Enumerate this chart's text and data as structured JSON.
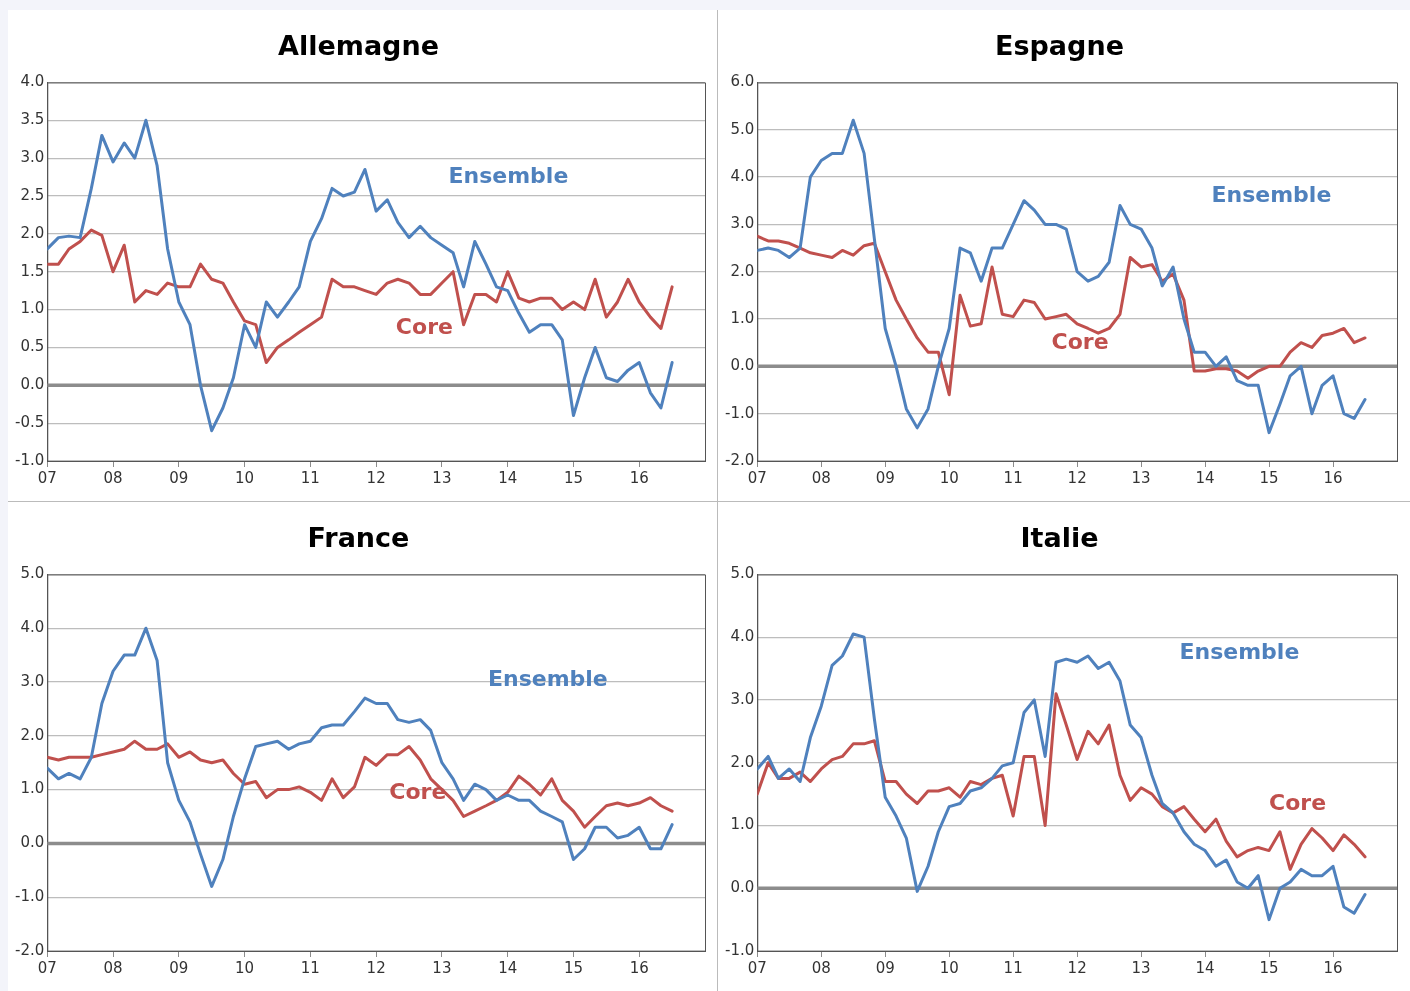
{
  "chart_data": [
    {
      "type": "line",
      "title": "Allemagne",
      "legend": false,
      "grid": "y",
      "marker": "none",
      "line_style": "solid",
      "x": [
        2007,
        2007.17,
        2007.33,
        2007.5,
        2007.67,
        2007.83,
        2008,
        2008.17,
        2008.33,
        2008.5,
        2008.67,
        2008.83,
        2009,
        2009.17,
        2009.33,
        2009.5,
        2009.67,
        2009.83,
        2010,
        2010.17,
        2010.33,
        2010.5,
        2010.67,
        2010.83,
        2011,
        2011.17,
        2011.33,
        2011.5,
        2011.67,
        2011.83,
        2012,
        2012.17,
        2012.33,
        2012.5,
        2012.67,
        2012.83,
        2013,
        2013.17,
        2013.33,
        2013.5,
        2013.67,
        2013.83,
        2014,
        2014.17,
        2014.33,
        2014.5,
        2014.67,
        2014.83,
        2015,
        2015.17,
        2015.33,
        2015.5,
        2015.67,
        2015.83,
        2016,
        2016.17,
        2016.33,
        2016.5
      ],
      "xlim": [
        2007,
        2017
      ],
      "xticks": [
        {
          "value": 2007,
          "label": "07"
        },
        {
          "value": 2008,
          "label": "08"
        },
        {
          "value": 2009,
          "label": "09"
        },
        {
          "value": 2010,
          "label": "10"
        },
        {
          "value": 2011,
          "label": "11"
        },
        {
          "value": 2012,
          "label": "12"
        },
        {
          "value": 2013,
          "label": "13"
        },
        {
          "value": 2014,
          "label": "14"
        },
        {
          "value": 2015,
          "label": "15"
        },
        {
          "value": 2016,
          "label": "16"
        }
      ],
      "ylim": [
        -1,
        4
      ],
      "yticks": [
        {
          "value": -1,
          "label": "-1.0"
        },
        {
          "value": -0.5,
          "label": "-0.5"
        },
        {
          "value": 0,
          "label": "0.0"
        },
        {
          "value": 0.5,
          "label": "0.5"
        },
        {
          "value": 1,
          "label": "1.0"
        },
        {
          "value": 1.5,
          "label": "1.5"
        },
        {
          "value": 2,
          "label": "2.0"
        },
        {
          "value": 2.5,
          "label": "2.5"
        },
        {
          "value": 3,
          "label": "3.0"
        },
        {
          "value": 3.5,
          "label": "3.5"
        },
        {
          "value": 4,
          "label": "4.0"
        }
      ],
      "series": [
        {
          "name": "Ensemble",
          "color": "#4f81bd",
          "values": [
            1.8,
            1.95,
            1.97,
            1.95,
            2.6,
            3.3,
            2.95,
            3.2,
            3.0,
            3.5,
            2.9,
            1.8,
            1.1,
            0.8,
            0.0,
            -0.6,
            -0.3,
            0.1,
            0.8,
            0.5,
            1.1,
            0.9,
            1.1,
            1.3,
            1.9,
            2.2,
            2.6,
            2.5,
            2.55,
            2.85,
            2.3,
            2.45,
            2.15,
            1.95,
            2.1,
            1.95,
            1.85,
            1.75,
            1.3,
            1.9,
            1.6,
            1.3,
            1.25,
            0.95,
            0.7,
            0.8,
            0.8,
            0.6,
            -0.4,
            0.1,
            0.5,
            0.1,
            0.05,
            0.2,
            0.3,
            -0.1,
            -0.3,
            0.3
          ]
        },
        {
          "name": "Core",
          "color": "#c0504d",
          "values": [
            1.6,
            1.6,
            1.8,
            1.9,
            2.05,
            1.98,
            1.5,
            1.85,
            1.1,
            1.25,
            1.2,
            1.35,
            1.3,
            1.3,
            1.6,
            1.4,
            1.35,
            1.1,
            0.85,
            0.8,
            0.3,
            0.5,
            0.6,
            0.7,
            0.8,
            0.9,
            1.4,
            1.3,
            1.3,
            1.25,
            1.2,
            1.35,
            1.4,
            1.35,
            1.2,
            1.2,
            1.35,
            1.5,
            0.8,
            1.2,
            1.2,
            1.1,
            1.5,
            1.15,
            1.1,
            1.15,
            1.15,
            1.0,
            1.1,
            1.0,
            1.4,
            0.9,
            1.1,
            1.4,
            1.1,
            0.9,
            0.75,
            1.3
          ]
        }
      ]
    },
    {
      "type": "line",
      "title": "Espagne",
      "legend": false,
      "grid": "y",
      "marker": "none",
      "line_style": "solid",
      "x": [
        2007,
        2007.17,
        2007.33,
        2007.5,
        2007.67,
        2007.83,
        2008,
        2008.17,
        2008.33,
        2008.5,
        2008.67,
        2008.83,
        2009,
        2009.17,
        2009.33,
        2009.5,
        2009.67,
        2009.83,
        2010,
        2010.17,
        2010.33,
        2010.5,
        2010.67,
        2010.83,
        2011,
        2011.17,
        2011.33,
        2011.5,
        2011.67,
        2011.83,
        2012,
        2012.17,
        2012.33,
        2012.5,
        2012.67,
        2012.83,
        2013,
        2013.17,
        2013.33,
        2013.5,
        2013.67,
        2013.83,
        2014,
        2014.17,
        2014.33,
        2014.5,
        2014.67,
        2014.83,
        2015,
        2015.17,
        2015.33,
        2015.5,
        2015.67,
        2015.83,
        2016,
        2016.17,
        2016.33,
        2016.5
      ],
      "xlim": [
        2007,
        2017
      ],
      "xticks": [
        {
          "value": 2007,
          "label": "07"
        },
        {
          "value": 2008,
          "label": "08"
        },
        {
          "value": 2009,
          "label": "09"
        },
        {
          "value": 2010,
          "label": "10"
        },
        {
          "value": 2011,
          "label": "11"
        },
        {
          "value": 2012,
          "label": "12"
        },
        {
          "value": 2013,
          "label": "13"
        },
        {
          "value": 2014,
          "label": "14"
        },
        {
          "value": 2015,
          "label": "15"
        },
        {
          "value": 2016,
          "label": "16"
        }
      ],
      "ylim": [
        -2,
        6
      ],
      "yticks": [
        {
          "value": -2,
          "label": "-2.0"
        },
        {
          "value": -1,
          "label": "-1.0"
        },
        {
          "value": 0,
          "label": "0.0"
        },
        {
          "value": 1,
          "label": "1.0"
        },
        {
          "value": 2,
          "label": "2.0"
        },
        {
          "value": 3,
          "label": "3.0"
        },
        {
          "value": 4,
          "label": "4.0"
        },
        {
          "value": 5,
          "label": "5.0"
        },
        {
          "value": 6,
          "label": "6.0"
        }
      ],
      "series": [
        {
          "name": "Ensemble",
          "color": "#4f81bd",
          "values": [
            2.45,
            2.5,
            2.45,
            2.3,
            2.5,
            4.0,
            4.35,
            4.5,
            4.5,
            5.2,
            4.5,
            2.7,
            0.8,
            0.0,
            -0.9,
            -1.3,
            -0.9,
            0.0,
            0.8,
            2.5,
            2.4,
            1.8,
            2.5,
            2.5,
            3.0,
            3.5,
            3.3,
            3.0,
            3.0,
            2.9,
            2.0,
            1.8,
            1.9,
            2.2,
            3.4,
            3.0,
            2.9,
            2.5,
            1.7,
            2.1,
            1.0,
            0.3,
            0.3,
            0.0,
            0.2,
            -0.3,
            -0.4,
            -0.4,
            -1.4,
            -0.8,
            -0.2,
            0.0,
            -1.0,
            -0.4,
            -0.2,
            -1.0,
            -1.1,
            -0.7
          ]
        },
        {
          "name": "Core",
          "color": "#c0504d",
          "values": [
            2.75,
            2.65,
            2.65,
            2.6,
            2.5,
            2.4,
            2.35,
            2.3,
            2.45,
            2.35,
            2.55,
            2.6,
            2.0,
            1.4,
            1.0,
            0.6,
            0.3,
            0.3,
            -0.6,
            1.5,
            0.85,
            0.9,
            2.1,
            1.1,
            1.05,
            1.4,
            1.35,
            1.0,
            1.05,
            1.1,
            0.9,
            0.8,
            0.7,
            0.8,
            1.1,
            2.3,
            2.1,
            2.15,
            1.8,
            1.95,
            1.4,
            -0.1,
            -0.1,
            -0.05,
            -0.05,
            -0.1,
            -0.25,
            -0.1,
            0.0,
            0.0,
            0.3,
            0.5,
            0.4,
            0.65,
            0.7,
            0.8,
            0.5,
            0.6
          ]
        }
      ]
    },
    {
      "type": "line",
      "title": "France",
      "legend": false,
      "grid": "y",
      "marker": "none",
      "line_style": "solid",
      "x": [
        2007,
        2007.17,
        2007.33,
        2007.5,
        2007.67,
        2007.83,
        2008,
        2008.17,
        2008.33,
        2008.5,
        2008.67,
        2008.83,
        2009,
        2009.17,
        2009.33,
        2009.5,
        2009.67,
        2009.83,
        2010,
        2010.17,
        2010.33,
        2010.5,
        2010.67,
        2010.83,
        2011,
        2011.17,
        2011.33,
        2011.5,
        2011.67,
        2011.83,
        2012,
        2012.17,
        2012.33,
        2012.5,
        2012.67,
        2012.83,
        2013,
        2013.17,
        2013.33,
        2013.5,
        2013.67,
        2013.83,
        2014,
        2014.17,
        2014.33,
        2014.5,
        2014.67,
        2014.83,
        2015,
        2015.17,
        2015.33,
        2015.5,
        2015.67,
        2015.83,
        2016,
        2016.17,
        2016.33,
        2016.5
      ],
      "xlim": [
        2007,
        2017
      ],
      "xticks": [
        {
          "value": 2007,
          "label": "07"
        },
        {
          "value": 2008,
          "label": "08"
        },
        {
          "value": 2009,
          "label": "09"
        },
        {
          "value": 2010,
          "label": "10"
        },
        {
          "value": 2011,
          "label": "11"
        },
        {
          "value": 2012,
          "label": "12"
        },
        {
          "value": 2013,
          "label": "13"
        },
        {
          "value": 2014,
          "label": "14"
        },
        {
          "value": 2015,
          "label": "15"
        },
        {
          "value": 2016,
          "label": "16"
        }
      ],
      "ylim": [
        -2,
        5
      ],
      "yticks": [
        {
          "value": -2,
          "label": "-2.0"
        },
        {
          "value": -1,
          "label": "-1.0"
        },
        {
          "value": 0,
          "label": "0.0"
        },
        {
          "value": 1,
          "label": "1.0"
        },
        {
          "value": 2,
          "label": "2.0"
        },
        {
          "value": 3,
          "label": "3.0"
        },
        {
          "value": 4,
          "label": "4.0"
        },
        {
          "value": 5,
          "label": "5.0"
        }
      ],
      "series": [
        {
          "name": "Ensemble",
          "color": "#4f81bd",
          "values": [
            1.4,
            1.2,
            1.3,
            1.2,
            1.6,
            2.6,
            3.2,
            3.5,
            3.5,
            4.0,
            3.4,
            1.5,
            0.8,
            0.4,
            -0.2,
            -0.8,
            -0.3,
            0.5,
            1.2,
            1.8,
            1.85,
            1.9,
            1.75,
            1.85,
            1.9,
            2.15,
            2.2,
            2.2,
            2.45,
            2.7,
            2.6,
            2.6,
            2.3,
            2.25,
            2.3,
            2.1,
            1.5,
            1.2,
            0.8,
            1.1,
            1.0,
            0.8,
            0.9,
            0.8,
            0.8,
            0.6,
            0.5,
            0.4,
            -0.3,
            -0.1,
            0.3,
            0.3,
            0.1,
            0.15,
            0.3,
            -0.1,
            -0.1,
            0.35
          ]
        },
        {
          "name": "Core",
          "color": "#c0504d",
          "values": [
            1.6,
            1.55,
            1.6,
            1.6,
            1.6,
            1.65,
            1.7,
            1.75,
            1.9,
            1.75,
            1.75,
            1.85,
            1.6,
            1.7,
            1.55,
            1.5,
            1.55,
            1.3,
            1.1,
            1.15,
            0.85,
            1.0,
            1.0,
            1.05,
            0.95,
            0.8,
            1.2,
            0.85,
            1.05,
            1.6,
            1.45,
            1.65,
            1.65,
            1.8,
            1.55,
            1.2,
            1.0,
            0.8,
            0.5,
            0.6,
            0.7,
            0.8,
            0.95,
            1.25,
            1.1,
            0.9,
            1.2,
            0.8,
            0.6,
            0.3,
            0.5,
            0.7,
            0.75,
            0.7,
            0.75,
            0.85,
            0.7,
            0.6
          ]
        }
      ]
    },
    {
      "type": "line",
      "title": "Italie",
      "legend": false,
      "grid": "y",
      "marker": "none",
      "line_style": "solid",
      "x": [
        2007,
        2007.17,
        2007.33,
        2007.5,
        2007.67,
        2007.83,
        2008,
        2008.17,
        2008.33,
        2008.5,
        2008.67,
        2008.83,
        2009,
        2009.17,
        2009.33,
        2009.5,
        2009.67,
        2009.83,
        2010,
        2010.17,
        2010.33,
        2010.5,
        2010.67,
        2010.83,
        2011,
        2011.17,
        2011.33,
        2011.5,
        2011.67,
        2011.83,
        2012,
        2012.17,
        2012.33,
        2012.5,
        2012.67,
        2012.83,
        2013,
        2013.17,
        2013.33,
        2013.5,
        2013.67,
        2013.83,
        2014,
        2014.17,
        2014.33,
        2014.5,
        2014.67,
        2014.83,
        2015,
        2015.17,
        2015.33,
        2015.5,
        2015.67,
        2015.83,
        2016,
        2016.17,
        2016.33,
        2016.5
      ],
      "xlim": [
        2007,
        2017
      ],
      "xticks": [
        {
          "value": 2007,
          "label": "07"
        },
        {
          "value": 2008,
          "label": "08"
        },
        {
          "value": 2009,
          "label": "09"
        },
        {
          "value": 2010,
          "label": "10"
        },
        {
          "value": 2011,
          "label": "11"
        },
        {
          "value": 2012,
          "label": "12"
        },
        {
          "value": 2013,
          "label": "13"
        },
        {
          "value": 2014,
          "label": "14"
        },
        {
          "value": 2015,
          "label": "15"
        },
        {
          "value": 2016,
          "label": "16"
        }
      ],
      "ylim": [
        -1,
        5
      ],
      "yticks": [
        {
          "value": -1,
          "label": "-1.0"
        },
        {
          "value": 0,
          "label": "0.0"
        },
        {
          "value": 1,
          "label": "1.0"
        },
        {
          "value": 2,
          "label": "2.0"
        },
        {
          "value": 3,
          "label": "3.0"
        },
        {
          "value": 4,
          "label": "4.0"
        },
        {
          "value": 5,
          "label": "5.0"
        }
      ],
      "series": [
        {
          "name": "Ensemble",
          "color": "#4f81bd",
          "values": [
            1.9,
            2.1,
            1.75,
            1.9,
            1.7,
            2.4,
            2.9,
            3.55,
            3.7,
            4.05,
            4.0,
            2.7,
            1.45,
            1.15,
            0.8,
            -0.05,
            0.35,
            0.9,
            1.3,
            1.35,
            1.55,
            1.6,
            1.75,
            1.95,
            2.0,
            2.8,
            3.0,
            2.1,
            3.6,
            3.65,
            3.6,
            3.7,
            3.5,
            3.6,
            3.3,
            2.6,
            2.4,
            1.8,
            1.35,
            1.2,
            0.9,
            0.7,
            0.6,
            0.35,
            0.45,
            0.1,
            0.0,
            0.2,
            -0.5,
            0.0,
            0.1,
            0.3,
            0.2,
            0.2,
            0.35,
            -0.3,
            -0.4,
            -0.1
          ]
        },
        {
          "name": "Core",
          "color": "#c0504d",
          "values": [
            1.5,
            2.0,
            1.75,
            1.75,
            1.85,
            1.7,
            1.9,
            2.05,
            2.1,
            2.3,
            2.3,
            2.35,
            1.7,
            1.7,
            1.5,
            1.35,
            1.55,
            1.55,
            1.6,
            1.45,
            1.7,
            1.65,
            1.75,
            1.8,
            1.15,
            2.1,
            2.1,
            1.0,
            3.1,
            2.6,
            2.05,
            2.5,
            2.3,
            2.6,
            1.8,
            1.4,
            1.6,
            1.5,
            1.3,
            1.2,
            1.3,
            1.1,
            0.9,
            1.1,
            0.75,
            0.5,
            0.6,
            0.65,
            0.6,
            0.9,
            0.3,
            0.7,
            0.95,
            0.8,
            0.6,
            0.85,
            0.7,
            0.5
          ]
        }
      ]
    }
  ]
}
